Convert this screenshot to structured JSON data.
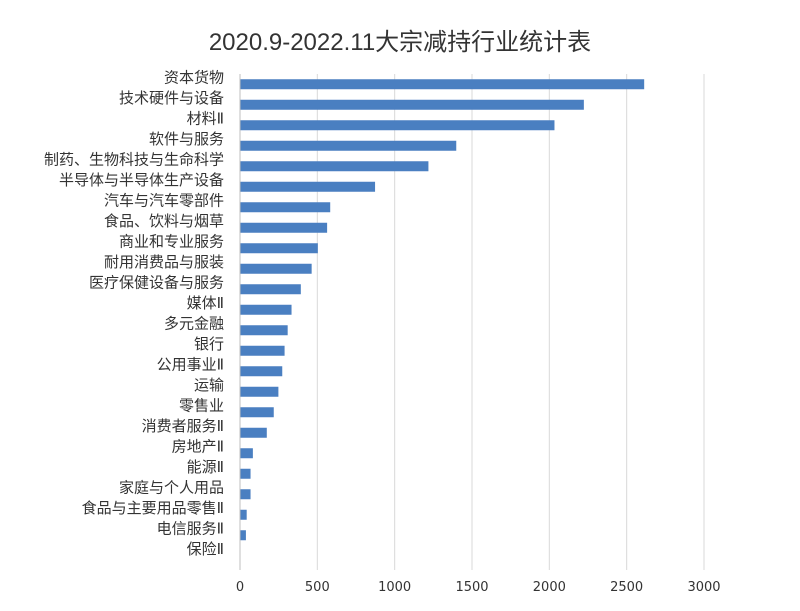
{
  "chart_data": {
    "type": "bar",
    "orientation": "horizontal",
    "title": "2020.9-2022.11大宗减持行业统计表",
    "xlabel": "",
    "ylabel": "",
    "xlim": [
      0,
      3000
    ],
    "xticks": [
      0,
      500,
      1000,
      1500,
      2000,
      2500,
      3000
    ],
    "grid": true,
    "legend": "none",
    "colors": {
      "bar": "#4a7fc1",
      "grid": "#d9d9d9",
      "text": "#333333"
    },
    "categories": [
      "资本货物",
      "技术硬件与设备",
      "材料Ⅱ",
      "软件与服务",
      "制药、生物科技与生命科学",
      "半导体与半导体生产设备",
      "汽车与汽车零部件",
      "食品、饮料与烟草",
      "商业和专业服务",
      "耐用消费品与服装",
      "医疗保健设备与服务",
      "媒体Ⅱ",
      "多元金融",
      "银行",
      "公用事业Ⅱ",
      "运输",
      "零售业",
      "消费者服务Ⅱ",
      "房地产Ⅱ",
      "能源Ⅱ",
      "家庭与个人用品",
      "食品与主要用品零售Ⅱ",
      "电信服务Ⅱ",
      "保险Ⅱ"
    ],
    "values": [
      2610,
      2220,
      2030,
      1395,
      1215,
      870,
      580,
      560,
      500,
      460,
      390,
      330,
      305,
      285,
      270,
      245,
      215,
      170,
      80,
      65,
      65,
      40,
      35,
      0
    ]
  }
}
